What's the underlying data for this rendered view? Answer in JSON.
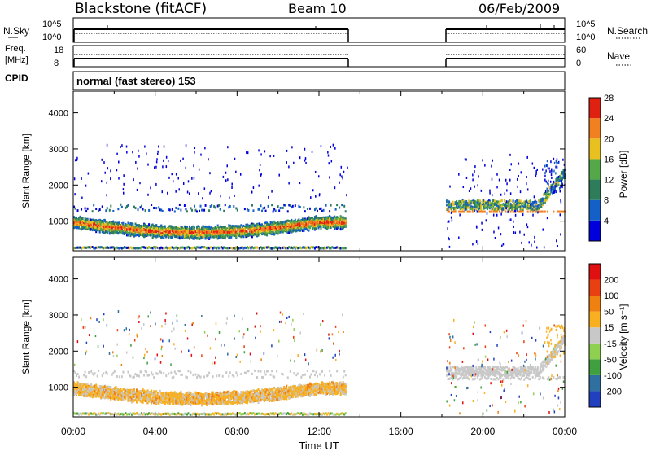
{
  "header": {
    "station": "Blackstone (fitACF)",
    "beam": "Beam 10",
    "date": "06/Feb/2009"
  },
  "top_panels": {
    "nsky_label": "N.Sky",
    "nsky_ticks": [
      "10^5",
      "10^0"
    ],
    "nsearch_label": "N.Search",
    "freq_label_line1": "Freq.",
    "freq_label_line2": "[MHz]",
    "freq_ticks": [
      "18",
      "8"
    ],
    "nave_label": "Nave",
    "nave_ticks": [
      "60",
      "0"
    ],
    "cpid_label": "CPID",
    "cpid_value": "normal (fast stereo) 153"
  },
  "chart_data": [
    {
      "type": "heatmap",
      "panel": "power",
      "ylabel": "Slant Range [km]",
      "yticks": [
        "1000",
        "2000",
        "3000",
        "4000"
      ],
      "ylim": [
        180,
        4600
      ],
      "xlim": [
        0,
        24
      ],
      "colorbar_label": "Power [dB]",
      "colorbar_ticks": [
        "4",
        "8",
        "12",
        "16",
        "20",
        "24",
        "28"
      ],
      "colors": [
        "#0000dd",
        "#1560c8",
        "#2e7d5a",
        "#55a84a",
        "#e8c020",
        "#f08020",
        "#e02010"
      ],
      "data_gaps_hours": [
        [
          13.4,
          18.2
        ]
      ]
    },
    {
      "type": "heatmap",
      "panel": "velocity",
      "ylabel": "Slant Range [km]",
      "yticks": [
        "1000",
        "2000",
        "3000",
        "4000"
      ],
      "ylim": [
        180,
        4600
      ],
      "xlim": [
        0,
        24
      ],
      "xlabel": "Time UT",
      "xticks": [
        "00:00",
        "04:00",
        "08:00",
        "12:00",
        "16:00",
        "20:00",
        "00:00"
      ],
      "colorbar_label": "Velocity [m s⁻¹]",
      "colorbar_ticks": [
        "200",
        "100",
        "50",
        "15",
        "-15",
        "-50",
        "-100",
        "-200"
      ],
      "colors": [
        "#2040c0",
        "#3070a0",
        "#40a040",
        "#90d050",
        "#c8c8c8",
        "#f8b020",
        "#f08010",
        "#e84010",
        "#e01010"
      ],
      "data_gaps_hours": [
        [
          13.4,
          18.2
        ]
      ]
    }
  ]
}
